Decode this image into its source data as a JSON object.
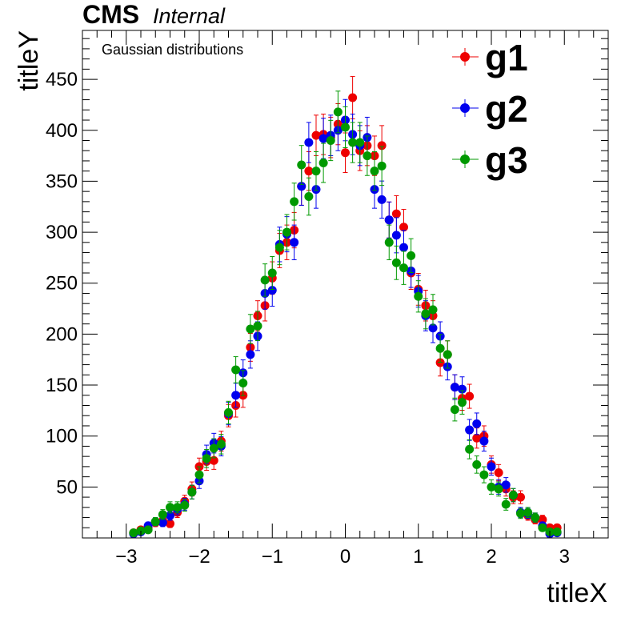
{
  "header": {
    "experiment": "CMS",
    "status": "Internal"
  },
  "annotation": "Gaussian distributions",
  "colors": {
    "g1": "#ee0000",
    "g2": "#0000ee",
    "g3": "#009900"
  },
  "chart_data": {
    "type": "scatter",
    "title": "",
    "xlabel": "titleX",
    "ylabel": "titleY",
    "xlim": [
      -3.6,
      3.6
    ],
    "ylim": [
      0,
      498
    ],
    "x_ticks": [
      -3,
      -2,
      -1,
      0,
      1,
      2,
      3
    ],
    "x_tick_labels": [
      "−3",
      "−2",
      "−1",
      "0",
      "1",
      "2",
      "3"
    ],
    "y_ticks": [
      50,
      100,
      150,
      200,
      250,
      300,
      350,
      400,
      450
    ],
    "y_tick_labels": [
      "50",
      "100",
      "150",
      "200",
      "250",
      "300",
      "350",
      "400",
      "450"
    ],
    "grid": false,
    "legend_position": "top-right",
    "x": [
      -2.9,
      -2.8,
      -2.7,
      -2.6,
      -2.5,
      -2.4,
      -2.3,
      -2.2,
      -2.1,
      -2.0,
      -1.9,
      -1.8,
      -1.7,
      -1.6,
      -1.5,
      -1.4,
      -1.3,
      -1.2,
      -1.1,
      -1.0,
      -0.9,
      -0.8,
      -0.7,
      -0.6,
      -0.5,
      -0.4,
      -0.3,
      -0.2,
      -0.1,
      0.0,
      0.1,
      0.2,
      0.3,
      0.4,
      0.5,
      0.6,
      0.7,
      0.8,
      0.9,
      1.0,
      1.1,
      1.2,
      1.3,
      1.4,
      1.5,
      1.6,
      1.7,
      1.8,
      1.9,
      2.0,
      2.1,
      2.2,
      2.3,
      2.4,
      2.5,
      2.6,
      2.7,
      2.8,
      2.9
    ],
    "series": [
      {
        "name": "g1",
        "values": [
          5,
          8,
          10,
          15,
          17,
          14,
          25,
          36,
          48,
          70,
          75,
          76,
          95,
          120,
          130,
          140,
          187,
          218,
          228,
          255,
          282,
          290,
          302,
          345,
          360,
          395,
          396,
          393,
          406,
          378,
          432,
          380,
          385,
          375,
          385,
          312,
          318,
          305,
          260,
          244,
          228,
          218,
          172,
          180,
          148,
          137,
          139,
          98,
          100,
          72,
          64,
          48,
          40,
          40,
          22,
          18,
          18,
          10,
          10
        ]
      },
      {
        "name": "g2",
        "values": [
          4,
          6,
          12,
          16,
          15,
          22,
          28,
          33,
          45,
          56,
          82,
          93,
          90,
          122,
          140,
          162,
          180,
          198,
          240,
          243,
          288,
          298,
          290,
          345,
          388,
          342,
          392,
          395,
          400,
          410,
          396,
          385,
          393,
          342,
          332,
          312,
          297,
          285,
          262,
          242,
          218,
          206,
          198,
          168,
          148,
          146,
          106,
          112,
          95,
          70,
          50,
          52,
          42,
          25,
          24,
          20,
          12,
          4,
          5
        ]
      },
      {
        "name": "g3",
        "values": [
          5,
          7,
          8,
          16,
          23,
          30,
          30,
          32,
          45,
          62,
          78,
          88,
          92,
          123,
          165,
          152,
          205,
          208,
          253,
          260,
          285,
          300,
          330,
          366,
          335,
          360,
          368,
          390,
          418,
          403,
          388,
          388,
          375,
          360,
          365,
          290,
          270,
          265,
          277,
          237,
          220,
          224,
          186,
          180,
          126,
          133,
          87,
          72,
          62,
          50,
          48,
          33,
          42,
          24,
          25,
          20,
          10,
          6,
          6
        ]
      }
    ]
  }
}
